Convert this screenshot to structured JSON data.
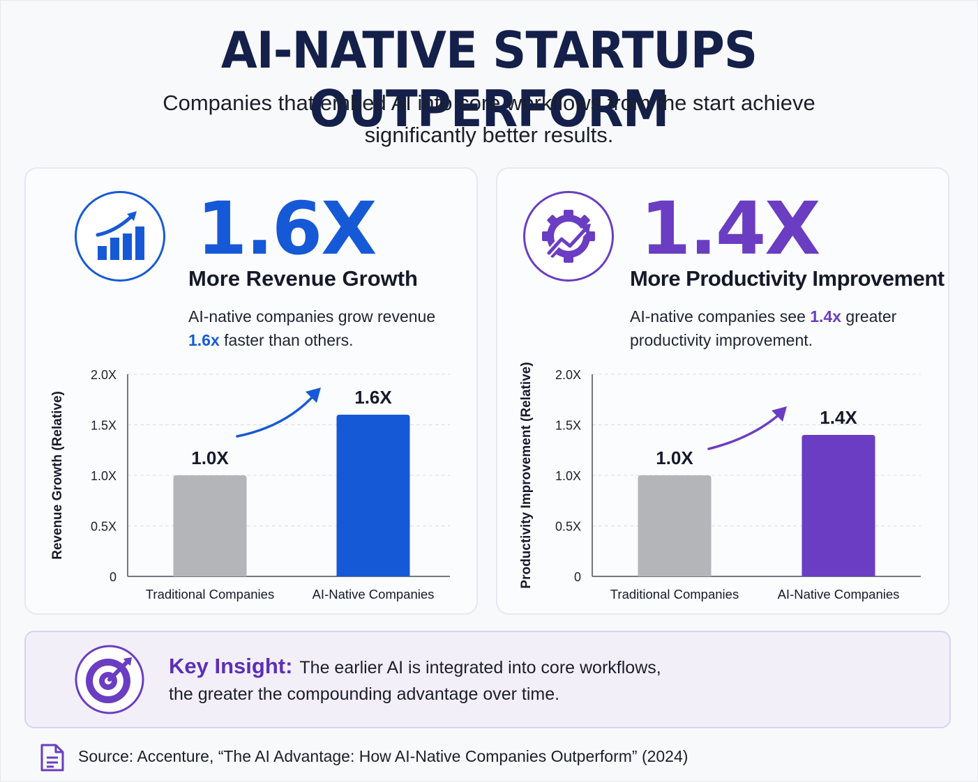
{
  "title": "AI-NATIVE STARTUPS OUTPERFORM",
  "subtitle": "Companies that embed AI into core workflows from the start achieve significantly better results.",
  "colors": {
    "blue": "#1659d6",
    "purple": "#6a3dc2",
    "gray_bar": "#b3b5b9",
    "navy_title": "#14204a"
  },
  "left_card": {
    "icon": "bar-chart-growth-icon",
    "big_number": "1.6X",
    "label": "More Revenue Growth",
    "desc_before": "AI-native companies grow revenue ",
    "desc_highlight": "1.6x",
    "desc_after": " faster than others."
  },
  "right_card": {
    "icon": "gear-growth-icon",
    "big_number": "1.4X",
    "label": "More Productivity Improvement",
    "desc_before": "AI-native companies see ",
    "desc_highlight": "1.4x",
    "desc_after": " greater productivity improvement."
  },
  "chart_data": [
    {
      "type": "bar",
      "categories": [
        "Traditional Companies",
        "AI-Native Companies"
      ],
      "values": [
        1.0,
        1.6
      ],
      "value_labels": [
        "1.0X",
        "1.6X"
      ],
      "ylabel": "Revenue Growth (Relative)",
      "ylim": [
        0,
        2.0
      ],
      "yticks": [
        "0",
        "0.5X",
        "1.0X",
        "1.5X",
        "2.0X"
      ],
      "bar_colors": [
        "#b3b5b9",
        "#1659d6"
      ],
      "grid": "horizontal dashed"
    },
    {
      "type": "bar",
      "categories": [
        "Traditional Companies",
        "AI-Native Companies"
      ],
      "values": [
        1.0,
        1.4
      ],
      "value_labels": [
        "1.0X",
        "1.4X"
      ],
      "ylabel": "Productivity Improvement (Relative)",
      "ylim": [
        0,
        2.0
      ],
      "yticks": [
        "0",
        "0.5X",
        "1.0X",
        "1.5X",
        "2.0X"
      ],
      "bar_colors": [
        "#b3b5b9",
        "#6a3dc2"
      ],
      "grid": "horizontal dashed"
    }
  ],
  "insight": {
    "icon": "target-icon",
    "heading": "Key Insight:",
    "text_line1": "The earlier AI is integrated into core workflows,",
    "text_line2": "the greater the compounding advantage over time."
  },
  "source": {
    "icon": "document-icon",
    "text": "Source: Accenture, “The AI Advantage: How AI-Native Companies Outperform” (2024)"
  }
}
